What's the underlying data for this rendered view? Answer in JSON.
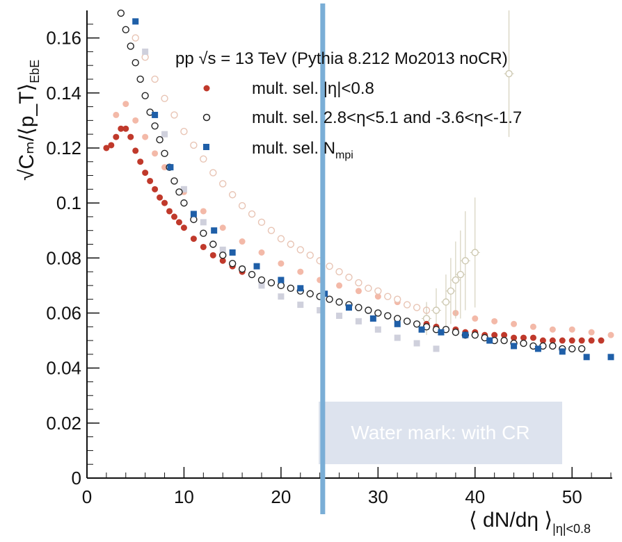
{
  "chart_data": {
    "type": "scatter",
    "title": "pp √s = 13 TeV (Pythia 8.212 Mo2013 noCR)",
    "xlabel": "⟨ dN/dη ⟩",
    "xlabel_sub": "|η|<0.8",
    "ylabel": "√Cₘ/⟨p_T⟩",
    "ylabel_sub": "EbE",
    "xlim": [
      0,
      54
    ],
    "ylim": [
      0,
      0.17
    ],
    "x_ticks": [
      0,
      10,
      20,
      30,
      40,
      50
    ],
    "x_tick_labels": [
      "0",
      "10",
      "20",
      "30",
      "40",
      "50"
    ],
    "y_ticks": [
      0,
      0.02,
      0.04,
      0.06,
      0.08,
      0.1,
      0.12,
      0.14,
      0.16
    ],
    "y_tick_labels": [
      "0",
      "0.02",
      "0.04",
      "0.06",
      "0.08",
      "0.1",
      "0.12",
      "0.14",
      "0.16"
    ],
    "legend_position": "top-right",
    "series": [
      {
        "name": "mult. sel. |η|<0.8",
        "legend_label": "mult. sel. |η|<0.8",
        "marker": "filled-circle",
        "color": "#c0392b",
        "points": [
          [
            2,
            0.12
          ],
          [
            2.5,
            0.121
          ],
          [
            3,
            0.124
          ],
          [
            3.5,
            0.127
          ],
          [
            4,
            0.127
          ],
          [
            4.5,
            0.124
          ],
          [
            5,
            0.119
          ],
          [
            5.5,
            0.115
          ],
          [
            6,
            0.111
          ],
          [
            6.5,
            0.108
          ],
          [
            7,
            0.105
          ],
          [
            7.5,
            0.102
          ],
          [
            8,
            0.1
          ],
          [
            8.5,
            0.097
          ],
          [
            9,
            0.095
          ],
          [
            9.5,
            0.093
          ],
          [
            10,
            0.091
          ],
          [
            11,
            0.087
          ],
          [
            12,
            0.084
          ],
          [
            13,
            0.081
          ],
          [
            14,
            0.079
          ],
          [
            15,
            0.077
          ],
          [
            16,
            0.075
          ],
          [
            17,
            0.074
          ],
          [
            18,
            0.072
          ],
          [
            19,
            0.071
          ],
          [
            20,
            0.07
          ],
          [
            21,
            0.069
          ],
          [
            22,
            0.068
          ],
          [
            23,
            0.067
          ],
          [
            24,
            0.066
          ],
          [
            25,
            0.065
          ],
          [
            26,
            0.064
          ],
          [
            27,
            0.063
          ],
          [
            28,
            0.062
          ],
          [
            29,
            0.061
          ],
          [
            30,
            0.06
          ],
          [
            31,
            0.059
          ],
          [
            32,
            0.058
          ],
          [
            33,
            0.057
          ],
          [
            34,
            0.056
          ],
          [
            35,
            0.056
          ],
          [
            36,
            0.055
          ],
          [
            37,
            0.054
          ],
          [
            38,
            0.054
          ],
          [
            39,
            0.053
          ],
          [
            40,
            0.053
          ],
          [
            41,
            0.052
          ],
          [
            42,
            0.052
          ],
          [
            43,
            0.052
          ],
          [
            44,
            0.051
          ],
          [
            45,
            0.051
          ],
          [
            46,
            0.051
          ],
          [
            47,
            0.05
          ],
          [
            48,
            0.05
          ],
          [
            49,
            0.05
          ],
          [
            50,
            0.05
          ],
          [
            51,
            0.05
          ],
          [
            52,
            0.05
          ],
          [
            53,
            0.05
          ]
        ]
      },
      {
        "name": "mult. sel. 2.8<η<5.1 and -3.6<η<-1.7",
        "legend_label": "mult. sel. 2.8<η<5.1 and -3.6<η<-1.7",
        "marker": "open-circle",
        "color": "#222222",
        "points": [
          [
            3.5,
            0.169
          ],
          [
            4,
            0.163
          ],
          [
            4.5,
            0.157
          ],
          [
            5,
            0.151
          ],
          [
            5.5,
            0.145
          ],
          [
            6,
            0.139
          ],
          [
            6.5,
            0.133
          ],
          [
            7,
            0.128
          ],
          [
            7.5,
            0.123
          ],
          [
            8,
            0.118
          ],
          [
            8.5,
            0.113
          ],
          [
            9,
            0.108
          ],
          [
            9.5,
            0.104
          ],
          [
            10,
            0.1
          ],
          [
            11,
            0.094
          ],
          [
            12,
            0.089
          ],
          [
            13,
            0.085
          ],
          [
            14,
            0.081
          ],
          [
            15,
            0.078
          ],
          [
            16,
            0.076
          ],
          [
            17,
            0.074
          ],
          [
            18,
            0.072
          ],
          [
            19,
            0.071
          ],
          [
            20,
            0.07
          ],
          [
            21,
            0.069
          ],
          [
            22,
            0.068
          ],
          [
            23,
            0.067
          ],
          [
            24,
            0.066
          ],
          [
            25,
            0.065
          ],
          [
            26,
            0.064
          ],
          [
            27,
            0.063
          ],
          [
            28,
            0.062
          ],
          [
            29,
            0.061
          ],
          [
            30,
            0.06
          ],
          [
            31,
            0.059
          ],
          [
            32,
            0.058
          ],
          [
            33,
            0.057
          ],
          [
            34,
            0.056
          ],
          [
            35,
            0.055
          ],
          [
            36,
            0.054
          ],
          [
            37,
            0.054
          ],
          [
            38,
            0.053
          ],
          [
            39,
            0.052
          ],
          [
            40,
            0.052
          ],
          [
            41,
            0.051
          ],
          [
            42,
            0.05
          ],
          [
            43,
            0.05
          ],
          [
            44,
            0.049
          ],
          [
            45,
            0.049
          ],
          [
            46,
            0.048
          ],
          [
            47,
            0.048
          ],
          [
            48,
            0.048
          ],
          [
            49,
            0.047
          ],
          [
            50,
            0.047
          ],
          [
            51,
            0.047
          ]
        ]
      },
      {
        "name": "mult. sel. N_mpi",
        "legend_label": "mult. sel. N",
        "legend_sub": "mpi",
        "marker": "filled-square",
        "color": "#1f5fa8",
        "points": [
          [
            5,
            0.166
          ],
          [
            7,
            0.132
          ],
          [
            8.6,
            0.113
          ],
          [
            11,
            0.096
          ],
          [
            13.1,
            0.09
          ],
          [
            15,
            0.082
          ],
          [
            17.5,
            0.077
          ],
          [
            20,
            0.072
          ],
          [
            22,
            0.069
          ],
          [
            24.5,
            0.067
          ],
          [
            27,
            0.062
          ],
          [
            29.5,
            0.058
          ],
          [
            32,
            0.056
          ],
          [
            34.5,
            0.054
          ],
          [
            36.5,
            0.053
          ],
          [
            39,
            0.052
          ],
          [
            41.5,
            0.05
          ],
          [
            44,
            0.048
          ],
          [
            46.5,
            0.047
          ],
          [
            49,
            0.046
          ],
          [
            51.5,
            0.044
          ],
          [
            54,
            0.044
          ]
        ]
      },
      {
        "name": "faint-filled-circle",
        "marker": "faint-filled-circle",
        "color": "#f3b9a8",
        "points": [
          [
            3,
            0.132
          ],
          [
            4,
            0.136
          ],
          [
            5,
            0.13
          ],
          [
            6,
            0.124
          ],
          [
            7,
            0.118
          ],
          [
            8,
            0.113
          ],
          [
            9,
            0.108
          ],
          [
            10,
            0.104
          ],
          [
            12,
            0.097
          ],
          [
            14,
            0.091
          ],
          [
            16,
            0.086
          ],
          [
            18,
            0.082
          ],
          [
            20,
            0.078
          ],
          [
            22,
            0.075
          ],
          [
            24,
            0.072
          ],
          [
            26,
            0.07
          ],
          [
            28,
            0.068
          ],
          [
            30,
            0.066
          ],
          [
            32,
            0.064
          ],
          [
            34,
            0.062
          ],
          [
            36,
            0.061
          ],
          [
            38,
            0.06
          ],
          [
            40,
            0.058
          ],
          [
            42,
            0.057
          ],
          [
            44,
            0.056
          ],
          [
            46,
            0.055
          ],
          [
            48,
            0.054
          ],
          [
            50,
            0.054
          ],
          [
            52,
            0.053
          ],
          [
            54,
            0.052
          ]
        ]
      },
      {
        "name": "faint-open-circle",
        "marker": "faint-open-circle",
        "color": "#e8c4b4",
        "points": [
          [
            5,
            0.16
          ],
          [
            6,
            0.153
          ],
          [
            7,
            0.145
          ],
          [
            8,
            0.138
          ],
          [
            9,
            0.132
          ],
          [
            10,
            0.126
          ],
          [
            11,
            0.121
          ],
          [
            12,
            0.116
          ],
          [
            13,
            0.111
          ],
          [
            14,
            0.107
          ],
          [
            15,
            0.103
          ],
          [
            16,
            0.099
          ],
          [
            17,
            0.096
          ],
          [
            18,
            0.093
          ],
          [
            19,
            0.09
          ],
          [
            20,
            0.087
          ],
          [
            21,
            0.085
          ],
          [
            22,
            0.083
          ],
          [
            23,
            0.081
          ],
          [
            24,
            0.079
          ],
          [
            25,
            0.077
          ],
          [
            26,
            0.075
          ],
          [
            27,
            0.073
          ],
          [
            28,
            0.071
          ],
          [
            29,
            0.069
          ],
          [
            30,
            0.068
          ],
          [
            31,
            0.066
          ],
          [
            32,
            0.065
          ],
          [
            33,
            0.063
          ],
          [
            34,
            0.062
          ],
          [
            35,
            0.061
          ]
        ]
      },
      {
        "name": "faint-square",
        "marker": "faint-square",
        "color": "#cfd0dc",
        "points": [
          [
            6,
            0.155
          ],
          [
            8,
            0.125
          ],
          [
            10,
            0.105
          ],
          [
            12,
            0.093
          ],
          [
            14,
            0.083
          ],
          [
            16,
            0.076
          ],
          [
            18,
            0.07
          ],
          [
            20,
            0.066
          ],
          [
            22,
            0.063
          ],
          [
            24,
            0.061
          ],
          [
            26,
            0.059
          ],
          [
            28,
            0.057
          ],
          [
            30,
            0.054
          ],
          [
            32,
            0.051
          ],
          [
            34,
            0.049
          ],
          [
            36,
            0.047
          ]
        ]
      },
      {
        "name": "faint-open-circle-errors",
        "marker": "faint-open-circle-errors",
        "color": "#cdc8b0",
        "points": [
          [
            35,
            0.058
          ],
          [
            36,
            0.061
          ],
          [
            37,
            0.064
          ],
          [
            37.5,
            0.068
          ],
          [
            38,
            0.072
          ],
          [
            38.5,
            0.074
          ],
          [
            39,
            0.079
          ],
          [
            40,
            0.082
          ],
          [
            43.5,
            0.147
          ]
        ],
        "errors": [
          0.006,
          0.008,
          0.01,
          0.012,
          0.014,
          0.016,
          0.018,
          0.02,
          0.023
        ]
      }
    ],
    "watermark": "Water mark: with CR",
    "vertical_marker_x": 24.3
  }
}
